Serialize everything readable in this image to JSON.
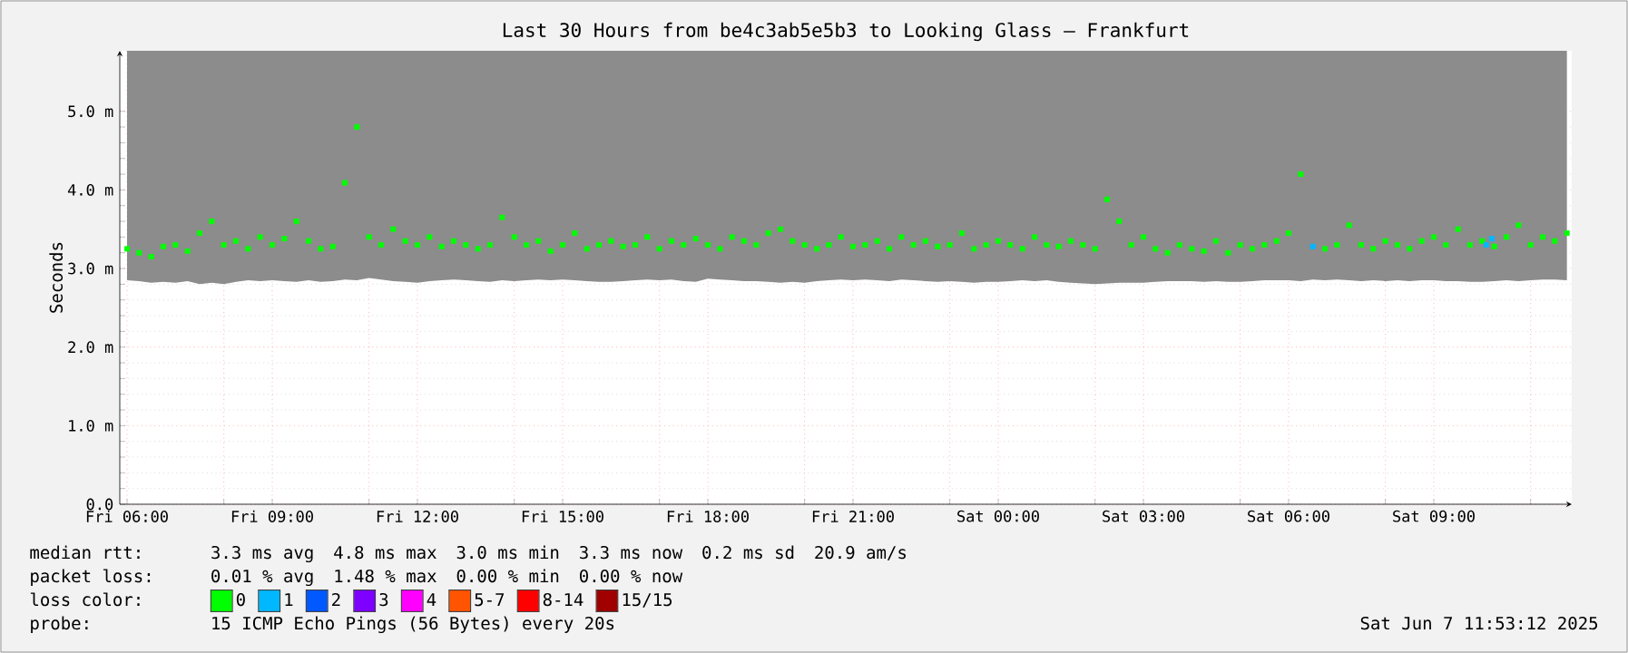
{
  "chart_data": {
    "type": "scatter",
    "title": "Last 30 Hours from be4c3ab5e5b3 to Looking Glass – Frankfurt",
    "ylabel": "Seconds",
    "legend_title": "loss color:",
    "legend": "bottom",
    "marker": "square",
    "grid": true,
    "xlim": [
      "2025-06-06T05:51",
      "2025-06-07T11:51"
    ],
    "ylim": [
      0,
      5.77
    ],
    "xticks": [
      {
        "value": "2025-06-06T06:00",
        "label": "Fri 06:00"
      },
      {
        "value": "2025-06-06T08:00",
        "label": null
      },
      {
        "value": "2025-06-06T09:00",
        "label": "Fri 09:00"
      },
      {
        "value": "2025-06-06T11:00",
        "label": null
      },
      {
        "value": "2025-06-06T12:00",
        "label": "Fri 12:00"
      },
      {
        "value": "2025-06-06T14:00",
        "label": null
      },
      {
        "value": "2025-06-06T15:00",
        "label": "Fri 15:00"
      },
      {
        "value": "2025-06-06T17:00",
        "label": null
      },
      {
        "value": "2025-06-06T18:00",
        "label": "Fri 18:00"
      },
      {
        "value": "2025-06-06T20:00",
        "label": null
      },
      {
        "value": "2025-06-06T21:00",
        "label": "Fri 21:00"
      },
      {
        "value": "2025-06-06T23:00",
        "label": null
      },
      {
        "value": "2025-06-07T00:00",
        "label": "Sat 00:00"
      },
      {
        "value": "2025-06-07T02:00",
        "label": null
      },
      {
        "value": "2025-06-07T03:00",
        "label": "Sat 03:00"
      },
      {
        "value": "2025-06-07T05:00",
        "label": null
      },
      {
        "value": "2025-06-07T06:00",
        "label": "Sat 06:00"
      },
      {
        "value": "2025-06-07T08:00",
        "label": null
      },
      {
        "value": "2025-06-07T09:00",
        "label": "Sat 09:00"
      },
      {
        "value": "2025-06-07T11:00",
        "label": null
      }
    ],
    "yticks": [
      {
        "value": 0,
        "label": "0.0"
      },
      {
        "value": 1,
        "label": "1.0 m"
      },
      {
        "value": 2,
        "label": "2.0 m"
      },
      {
        "value": 3,
        "label": "3.0 m"
      },
      {
        "value": 4,
        "label": "4.0 m"
      },
      {
        "value": 5,
        "label": "5.0 m"
      }
    ],
    "series": [
      {
        "name": "0",
        "color": "#00ff00",
        "x": [
          "2025-06-06T06:00",
          "2025-06-06T06:15",
          "2025-06-06T06:30",
          "2025-06-06T06:45",
          "2025-06-06T07:00",
          "2025-06-06T07:15",
          "2025-06-06T07:30",
          "2025-06-06T07:45",
          "2025-06-06T08:00",
          "2025-06-06T08:15",
          "2025-06-06T08:30",
          "2025-06-06T08:45",
          "2025-06-06T09:00",
          "2025-06-06T09:15",
          "2025-06-06T09:30",
          "2025-06-06T09:45",
          "2025-06-06T10:00",
          "2025-06-06T10:15",
          "2025-06-06T10:30",
          "2025-06-06T10:45",
          "2025-06-06T11:00",
          "2025-06-06T11:15",
          "2025-06-06T11:30",
          "2025-06-06T11:45",
          "2025-06-06T12:00",
          "2025-06-06T12:15",
          "2025-06-06T12:30",
          "2025-06-06T12:45",
          "2025-06-06T13:00",
          "2025-06-06T13:15",
          "2025-06-06T13:30",
          "2025-06-06T13:45",
          "2025-06-06T14:00",
          "2025-06-06T14:15",
          "2025-06-06T14:30",
          "2025-06-06T14:45",
          "2025-06-06T15:00",
          "2025-06-06T15:15",
          "2025-06-06T15:30",
          "2025-06-06T15:45",
          "2025-06-06T16:00",
          "2025-06-06T16:15",
          "2025-06-06T16:30",
          "2025-06-06T16:45",
          "2025-06-06T17:00",
          "2025-06-06T17:15",
          "2025-06-06T17:30",
          "2025-06-06T17:45",
          "2025-06-06T18:00",
          "2025-06-06T18:15",
          "2025-06-06T18:30",
          "2025-06-06T18:45",
          "2025-06-06T19:00",
          "2025-06-06T19:15",
          "2025-06-06T19:30",
          "2025-06-06T19:45",
          "2025-06-06T20:00",
          "2025-06-06T20:15",
          "2025-06-06T20:30",
          "2025-06-06T20:45",
          "2025-06-06T21:00",
          "2025-06-06T21:15",
          "2025-06-06T21:30",
          "2025-06-06T21:45",
          "2025-06-06T22:00",
          "2025-06-06T22:15",
          "2025-06-06T22:30",
          "2025-06-06T22:45",
          "2025-06-06T23:00",
          "2025-06-06T23:15",
          "2025-06-06T23:30",
          "2025-06-06T23:45",
          "2025-06-07T00:00",
          "2025-06-07T00:15",
          "2025-06-07T00:30",
          "2025-06-07T00:45",
          "2025-06-07T01:00",
          "2025-06-07T01:15",
          "2025-06-07T01:30",
          "2025-06-07T01:45",
          "2025-06-07T02:00",
          "2025-06-07T02:15",
          "2025-06-07T02:30",
          "2025-06-07T02:45",
          "2025-06-07T03:00",
          "2025-06-07T03:15",
          "2025-06-07T03:30",
          "2025-06-07T03:45",
          "2025-06-07T04:00",
          "2025-06-07T04:15",
          "2025-06-07T04:30",
          "2025-06-07T04:45",
          "2025-06-07T05:00",
          "2025-06-07T05:15",
          "2025-06-07T05:30",
          "2025-06-07T05:45",
          "2025-06-07T06:00",
          "2025-06-07T06:15",
          "2025-06-07T06:30",
          "2025-06-07T06:45",
          "2025-06-07T07:00",
          "2025-06-07T07:15",
          "2025-06-07T07:30",
          "2025-06-07T07:45",
          "2025-06-07T08:00",
          "2025-06-07T08:15",
          "2025-06-07T08:30",
          "2025-06-07T08:45",
          "2025-06-07T09:00",
          "2025-06-07T09:15",
          "2025-06-07T09:30",
          "2025-06-07T09:45",
          "2025-06-07T10:00",
          "2025-06-07T10:15",
          "2025-06-07T10:30",
          "2025-06-07T10:45",
          "2025-06-07T11:00",
          "2025-06-07T11:15",
          "2025-06-07T11:30",
          "2025-06-07T11:45"
        ],
        "values": [
          3.25,
          3.2,
          3.15,
          3.28,
          3.3,
          3.22,
          3.45,
          3.6,
          3.3,
          3.35,
          3.25,
          3.4,
          3.3,
          3.38,
          3.6,
          3.35,
          3.25,
          3.28,
          4.09,
          4.8,
          3.4,
          3.3,
          3.5,
          3.35,
          3.3,
          3.4,
          3.28,
          3.35,
          3.3,
          3.25,
          3.3,
          3.65,
          3.4,
          3.3,
          3.35,
          3.22,
          3.3,
          3.45,
          3.25,
          3.3,
          3.35,
          3.28,
          3.3,
          3.4,
          3.25,
          3.35,
          3.3,
          3.38,
          3.3,
          3.25,
          3.4,
          3.35,
          3.3,
          3.45,
          3.5,
          3.35,
          3.3,
          3.25,
          3.3,
          3.4,
          3.28,
          3.3,
          3.35,
          3.25,
          3.4,
          3.3,
          3.35,
          3.28,
          3.3,
          3.45,
          3.25,
          3.3,
          3.35,
          3.3,
          3.25,
          3.4,
          3.3,
          3.28,
          3.35,
          3.3,
          3.25,
          3.88,
          3.6,
          3.3,
          3.4,
          3.25,
          3.2,
          3.3,
          3.25,
          3.22,
          3.35,
          3.2,
          3.3,
          3.25,
          3.3,
          3.35,
          3.45,
          4.2,
          null,
          3.25,
          3.3,
          3.55,
          3.3,
          3.25,
          3.35,
          3.3,
          3.25,
          3.35,
          3.4,
          3.3,
          3.5,
          3.3,
          3.35,
          3.28,
          3.4,
          3.55,
          3.3,
          3.4,
          3.35,
          3.45
        ],
        "lower": [
          2.85,
          2.84,
          2.82,
          2.83,
          2.82,
          2.84,
          2.8,
          2.82,
          2.8,
          2.83,
          2.85,
          2.84,
          2.85,
          2.84,
          2.83,
          2.85,
          2.83,
          2.84,
          2.86,
          2.85,
          2.88,
          2.86,
          2.84,
          2.83,
          2.82,
          2.84,
          2.85,
          2.86,
          2.85,
          2.84,
          2.83,
          2.85,
          2.84,
          2.85,
          2.86,
          2.85,
          2.86,
          2.85,
          2.84,
          2.83,
          2.83,
          2.84,
          2.85,
          2.86,
          2.85,
          2.86,
          2.84,
          2.83,
          2.87,
          2.86,
          2.85,
          2.84,
          2.84,
          2.83,
          2.82,
          2.83,
          2.82,
          2.84,
          2.85,
          2.86,
          2.85,
          2.86,
          2.85,
          2.84,
          2.86,
          2.85,
          2.84,
          2.83,
          2.84,
          2.83,
          2.82,
          2.83,
          2.83,
          2.84,
          2.85,
          2.84,
          2.85,
          2.83,
          2.82,
          2.81,
          2.8,
          2.81,
          2.82,
          2.82,
          2.82,
          2.83,
          2.84,
          2.84,
          2.84,
          2.83,
          2.84,
          2.83,
          2.83,
          2.84,
          2.85,
          2.85,
          2.85,
          2.84,
          2.86,
          2.85,
          2.86,
          2.85,
          2.84,
          2.85,
          2.84,
          2.85,
          2.84,
          2.85,
          2.85,
          2.84,
          2.84,
          2.83,
          2.83,
          2.84,
          2.85,
          2.84,
          2.85,
          2.86,
          2.86,
          2.85
        ],
        "upper": [
          5.77,
          5.77,
          5.77,
          5.77,
          5.77,
          5.77,
          5.77,
          5.77,
          5.77,
          5.77,
          5.77,
          5.77,
          5.77,
          5.77,
          5.77,
          5.77,
          5.77,
          5.77,
          5.77,
          5.77,
          5.77,
          5.77,
          5.77,
          5.77,
          5.77,
          5.77,
          5.77,
          5.77,
          5.77,
          5.77,
          5.77,
          5.77,
          5.77,
          5.77,
          5.77,
          5.77,
          5.77,
          5.77,
          5.77,
          5.77,
          5.77,
          5.77,
          5.77,
          5.77,
          5.77,
          5.77,
          5.77,
          5.77,
          5.77,
          5.77,
          5.77,
          5.77,
          5.77,
          5.77,
          5.77,
          5.77,
          5.77,
          5.77,
          5.77,
          5.77,
          5.77,
          5.77,
          5.77,
          5.77,
          5.77,
          5.77,
          5.77,
          5.77,
          5.77,
          5.77,
          5.77,
          5.77,
          5.77,
          5.77,
          5.77,
          5.77,
          5.77,
          5.77,
          5.77,
          5.77,
          5.77,
          5.77,
          5.77,
          5.77,
          5.77,
          5.77,
          5.77,
          5.77,
          5.77,
          5.77,
          5.77,
          5.77,
          5.77,
          5.77,
          5.77,
          5.77,
          5.77,
          5.77,
          5.77,
          5.77,
          5.77,
          5.77,
          5.77,
          5.77,
          5.77,
          5.77,
          5.77,
          5.77,
          5.77,
          5.77,
          5.77,
          5.77,
          5.77,
          5.77,
          5.77,
          5.77,
          5.77,
          5.77,
          5.77,
          5.77
        ]
      },
      {
        "name": "1",
        "color": "#00b8ff",
        "x": [
          "2025-06-07T06:30",
          "2025-06-07T10:05",
          "2025-06-07T10:12"
        ],
        "values": [
          3.28,
          3.3,
          3.38
        ]
      },
      {
        "name": "2",
        "color": "#0059ff"
      },
      {
        "name": "3",
        "color": "#7e00ff"
      },
      {
        "name": "4",
        "color": "#ff00ff"
      },
      {
        "name": "5-7",
        "color": "#ff5500"
      },
      {
        "name": "8-14",
        "color": "#ff0000"
      },
      {
        "name": "15/15",
        "color": "#a10000"
      }
    ],
    "annotations": [
      "median rtt:",
      "3.3 ms avg",
      "4.8 ms max",
      "3.0 ms min",
      "3.3 ms now",
      "0.2 ms sd",
      "20.9   am/s",
      "packet loss:",
      "0.01 % avg",
      "1.48 % max",
      "0.00 % min",
      "0.00 % now",
      "probe:",
      "15 ICMP Echo Pings (56 Bytes) every 20s",
      "Sat Jun  7 11:53:12 2025"
    ]
  }
}
